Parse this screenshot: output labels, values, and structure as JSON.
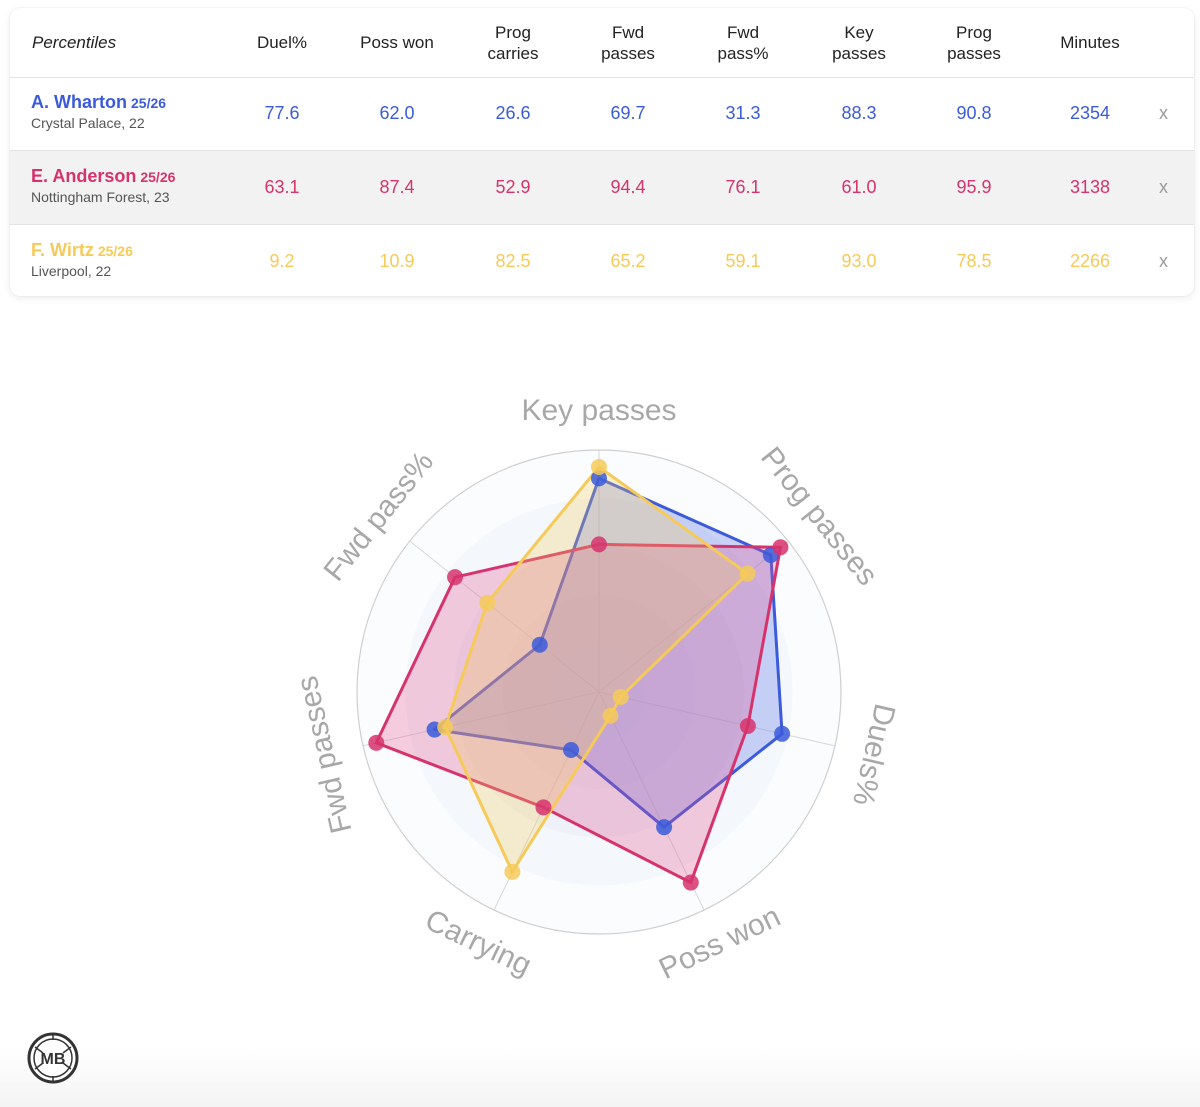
{
  "table": {
    "header_label": "Percentiles",
    "columns": [
      "Duel%",
      "Poss won",
      "Prog\ncarries",
      "Fwd\npasses",
      "Fwd\npass%",
      "Key\npasses",
      "Prog\npasses",
      "Minutes"
    ],
    "remove_label": "x",
    "players": [
      {
        "name": "A. Wharton",
        "season": "25/26",
        "club": "Crystal Palace, 22",
        "color": "#3b5bdb",
        "values": [
          "77.6",
          "62.0",
          "26.6",
          "69.7",
          "31.3",
          "88.3",
          "90.8",
          "2354"
        ]
      },
      {
        "name": "E. Anderson",
        "season": "25/26",
        "club": "Nottingham Forest, 23",
        "color": "#d6336c",
        "values": [
          "63.1",
          "87.4",
          "52.9",
          "94.4",
          "76.1",
          "61.0",
          "95.9",
          "3138"
        ]
      },
      {
        "name": "F. Wirtz",
        "season": "25/26",
        "club": "Liverpool, 22",
        "color": "#f6ca59",
        "values": [
          "9.2",
          "10.9",
          "82.5",
          "65.2",
          "59.1",
          "93.0",
          "78.5",
          "2266"
        ]
      }
    ]
  },
  "chart_data": {
    "type": "radar",
    "axes": [
      "Key passes",
      "Prog passes",
      "Duels%",
      "Poss won",
      "Carrying",
      "Fwd passes",
      "Fwd pass%"
    ],
    "range": [
      0,
      100
    ],
    "series": [
      {
        "name": "A. Wharton",
        "color": "#3b5bdb",
        "fill": "rgba(77,104,230,0.28)",
        "values": [
          88.3,
          90.8,
          77.6,
          62.0,
          26.6,
          69.7,
          31.3
        ]
      },
      {
        "name": "E. Anderson",
        "color": "#d6336c",
        "fill": "rgba(225,80,140,0.28)",
        "values": [
          61.0,
          95.9,
          63.1,
          87.4,
          52.9,
          94.4,
          76.1
        ]
      },
      {
        "name": "F. Wirtz",
        "color": "#f6ca59",
        "fill": "rgba(246,202,89,0.28)",
        "values": [
          93.0,
          78.5,
          9.2,
          10.9,
          82.5,
          65.2,
          59.1
        ]
      }
    ]
  },
  "logo": {
    "text": "MB"
  }
}
